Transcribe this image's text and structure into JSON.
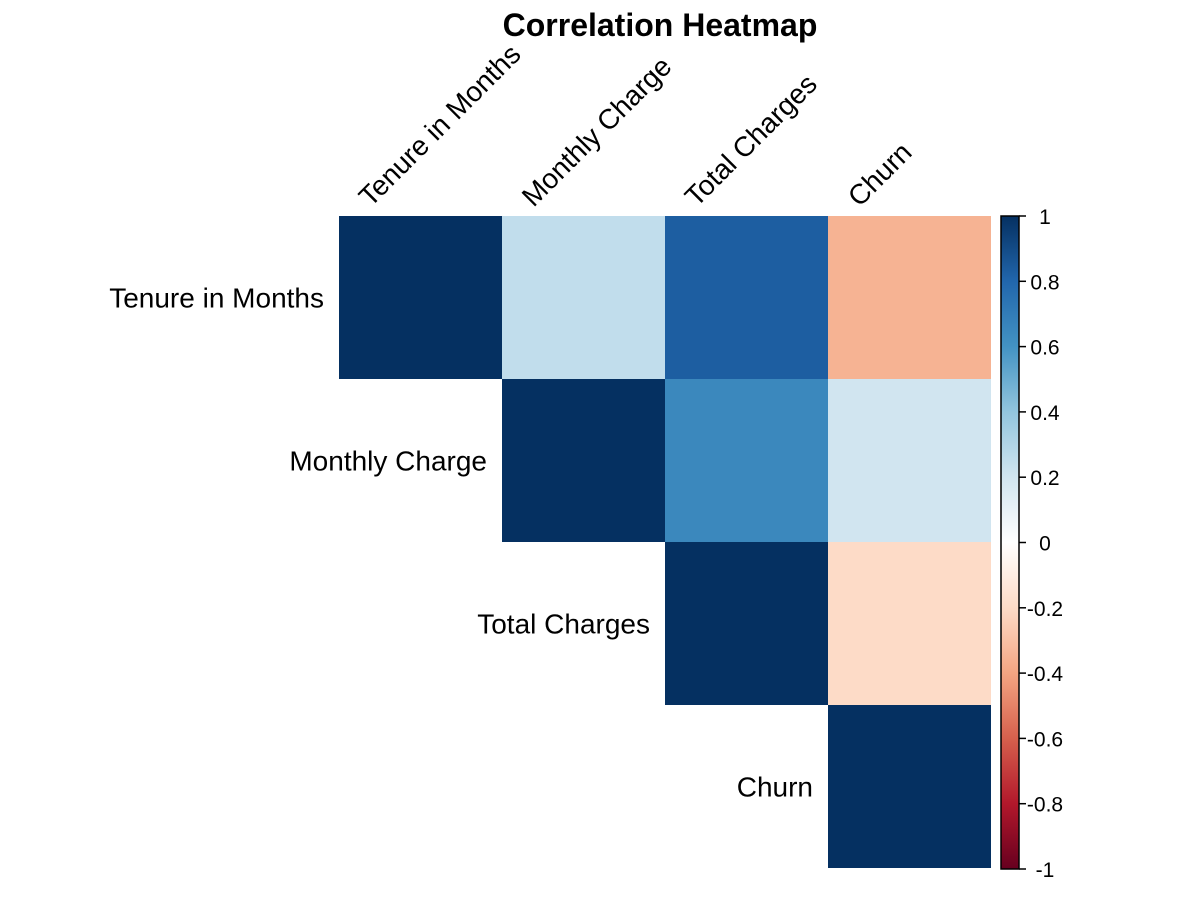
{
  "chart_data": {
    "type": "heatmap",
    "title": "Correlation Heatmap",
    "variables": [
      "Tenure in Months",
      "Monthly Charge",
      "Total Charges",
      "Churn"
    ],
    "layout": "upper-triangle",
    "matrix": [
      [
        1.0,
        0.25,
        0.83,
        -0.35
      ],
      [
        null,
        1.0,
        0.65,
        0.2
      ],
      [
        null,
        null,
        1.0,
        -0.2
      ],
      [
        null,
        null,
        null,
        1.0
      ]
    ],
    "color_scale": {
      "range": [
        -1,
        1
      ],
      "ticks": [
        "1",
        "0.8",
        "0.6",
        "0.4",
        "0.2",
        "0",
        "-0.2",
        "-0.4",
        "-0.6",
        "-0.8",
        "-1"
      ],
      "tick_values": [
        1,
        0.8,
        0.6,
        0.4,
        0.2,
        0,
        -0.2,
        -0.4,
        -0.6,
        -0.8,
        -1
      ],
      "colors": [
        "#67001F",
        "#B2182B",
        "#D6604D",
        "#F4A582",
        "#FDDBC7",
        "#FFFFFF",
        "#D1E5F0",
        "#92C5DE",
        "#4393C3",
        "#2166AC",
        "#053061"
      ]
    },
    "legend_position": "right",
    "grid": false
  }
}
